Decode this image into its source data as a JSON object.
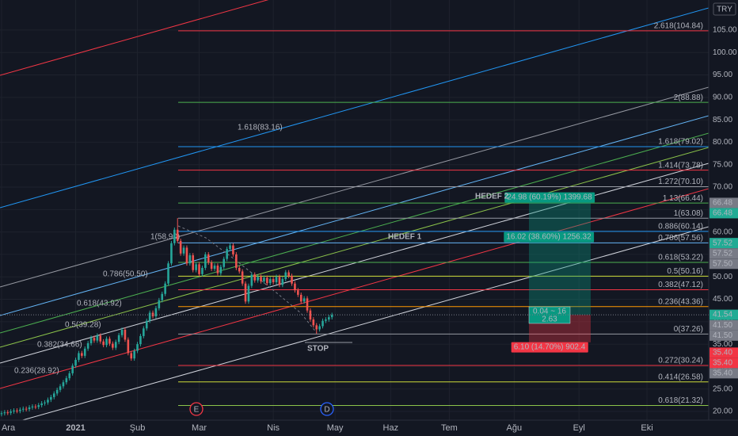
{
  "chart_data": {
    "type": "candlestick",
    "currency": "TRY",
    "xlim": [
      -0.5,
      229
    ],
    "xticks": [
      {
        "value": 0,
        "label": "Ara"
      },
      {
        "value": 24,
        "label": "2021"
      },
      {
        "value": 44,
        "label": "Şub"
      },
      {
        "value": 64,
        "label": "Mar"
      },
      {
        "value": 88,
        "label": "Nis"
      },
      {
        "value": 108,
        "label": "May"
      },
      {
        "value": 126,
        "label": "Haz"
      },
      {
        "value": 145,
        "label": "Tem"
      },
      {
        "value": 166,
        "label": "Ağu"
      },
      {
        "value": 187,
        "label": "Eyl"
      },
      {
        "value": 209,
        "label": "Eki"
      }
    ],
    "ylim": [
      18.06,
      111.7
    ],
    "yticks": [
      {
        "value": 20,
        "label": "20.00"
      },
      {
        "value": 25,
        "label": "25.00"
      },
      {
        "value": 30,
        "label": "30.00"
      },
      {
        "value": 35,
        "label": "35.00"
      },
      {
        "value": 40,
        "label": "40.00"
      },
      {
        "value": 45,
        "label": "45.00"
      },
      {
        "value": 50,
        "label": "50.00"
      },
      {
        "value": 55,
        "label": "55.00"
      },
      {
        "value": 60,
        "label": "60.00"
      },
      {
        "value": 65,
        "label": "65.00"
      },
      {
        "value": 70,
        "label": "70.00"
      },
      {
        "value": 75,
        "label": "75.00"
      },
      {
        "value": 80,
        "label": "80.00"
      },
      {
        "value": 85,
        "label": "85.00"
      },
      {
        "value": 90,
        "label": "90.00"
      },
      {
        "value": 95,
        "label": "95.00"
      },
      {
        "value": 100,
        "label": "100.00"
      },
      {
        "value": 105,
        "label": "105.00"
      }
    ],
    "grid": true,
    "up_color": "#26a69a",
    "down_color": "#ef5350",
    "open": [
      19.4,
      19.6,
      19.8,
      19.7,
      20.0,
      20.2,
      20.1,
      20.4,
      20.6,
      20.5,
      20.9,
      21.1,
      21.0,
      21.4,
      21.8,
      22.0,
      22.6,
      23.2,
      24.0,
      24.8,
      25.6,
      26.5,
      27.4,
      28.5,
      30.2,
      31.5,
      33.0,
      32.4,
      34.0,
      35.2,
      36.4,
      35.8,
      36.9,
      35.6,
      34.8,
      36.2,
      35.1,
      34.2,
      35.5,
      37.0,
      38.2,
      36.0,
      33.0,
      31.8,
      33.5,
      35.0,
      36.8,
      38.5,
      40.2,
      42.0,
      41.2,
      43.0,
      44.8,
      46.2,
      48.5,
      53.0,
      57.5,
      60.5,
      58.0,
      55.2,
      56.5,
      53.0,
      54.8,
      51.5,
      52.8,
      50.6,
      52.0,
      55.0,
      53.2,
      51.8,
      52.5,
      50.8,
      52.2,
      54.0,
      56.2,
      57.0,
      55.0,
      52.0,
      51.2,
      48.5,
      44.5,
      48.0,
      50.5,
      49.2,
      50.0,
      49.0,
      49.8,
      48.6,
      49.5,
      48.8,
      50.0,
      48.2,
      49.5,
      51.0,
      50.2,
      48.5,
      47.0,
      46.0,
      44.5,
      45.2,
      42.5,
      40.5,
      39.2,
      38.3,
      39.0,
      40.2,
      40.5,
      41.0
    ],
    "high": [
      20.1,
      20.3,
      20.3,
      20.5,
      20.7,
      20.7,
      20.9,
      21.1,
      21.1,
      21.4,
      21.6,
      21.6,
      21.9,
      22.3,
      22.5,
      23.1,
      23.7,
      24.5,
      25.3,
      26.1,
      27.0,
      27.9,
      29.0,
      30.7,
      32.0,
      33.5,
      33.5,
      34.5,
      35.7,
      36.9,
      36.9,
      37.4,
      37.4,
      36.1,
      36.7,
      36.7,
      35.6,
      36.0,
      37.5,
      38.7,
      38.7,
      36.5,
      33.5,
      34.0,
      35.5,
      37.3,
      39.0,
      40.7,
      42.5,
      42.5,
      43.5,
      45.3,
      46.7,
      49.0,
      53.5,
      58.0,
      61.0,
      63.1,
      58.5,
      57.0,
      57.0,
      55.3,
      55.3,
      53.3,
      53.3,
      52.5,
      55.5,
      55.5,
      53.7,
      53.0,
      53.0,
      52.7,
      54.5,
      56.7,
      57.5,
      57.5,
      55.5,
      52.5,
      51.7,
      49.0,
      48.5,
      51.0,
      51.0,
      50.5,
      50.5,
      50.3,
      50.3,
      50.0,
      50.0,
      50.5,
      50.5,
      50.0,
      51.5,
      51.5,
      50.7,
      49.0,
      47.5,
      46.5,
      45.7,
      45.7,
      43.0,
      41.0,
      39.7,
      39.5,
      40.7,
      41.0,
      41.5,
      42.0
    ],
    "low": [
      18.9,
      19.1,
      19.2,
      19.2,
      19.5,
      19.6,
      19.6,
      19.9,
      20.0,
      20.0,
      20.4,
      20.5,
      20.5,
      20.9,
      21.3,
      21.5,
      22.1,
      22.7,
      23.5,
      24.3,
      25.1,
      26.0,
      26.9,
      28.0,
      29.7,
      31.0,
      31.9,
      31.9,
      33.5,
      34.7,
      35.3,
      35.3,
      35.1,
      34.3,
      34.3,
      34.6,
      33.7,
      33.7,
      35.0,
      36.5,
      35.5,
      32.5,
      31.3,
      31.3,
      33.0,
      34.5,
      36.3,
      38.0,
      39.7,
      40.7,
      40.7,
      42.5,
      44.3,
      45.7,
      48.0,
      52.5,
      57.0,
      57.5,
      54.7,
      54.7,
      52.5,
      52.5,
      51.0,
      51.0,
      50.1,
      50.1,
      51.5,
      52.7,
      51.3,
      51.3,
      50.3,
      50.3,
      51.7,
      53.5,
      55.7,
      54.5,
      51.5,
      50.7,
      48.0,
      44.0,
      44.0,
      47.5,
      48.7,
      48.7,
      48.5,
      48.5,
      48.1,
      48.1,
      48.3,
      48.3,
      47.7,
      47.7,
      49.0,
      49.7,
      48.0,
      46.5,
      45.5,
      44.0,
      44.0,
      42.0,
      40.0,
      38.7,
      37.3,
      37.8,
      38.5,
      39.7,
      40.0,
      40.5
    ],
    "close": [
      19.6,
      19.8,
      19.7,
      20.0,
      20.2,
      20.1,
      20.4,
      20.6,
      20.5,
      20.9,
      21.1,
      21.0,
      21.4,
      21.8,
      22.0,
      22.6,
      23.2,
      24.0,
      24.8,
      25.6,
      26.5,
      27.4,
      28.5,
      30.2,
      31.5,
      33.0,
      32.4,
      34.0,
      35.2,
      36.4,
      35.8,
      36.9,
      35.6,
      34.8,
      36.2,
      35.1,
      34.2,
      35.5,
      37.0,
      38.2,
      36.0,
      33.0,
      31.8,
      33.5,
      35.0,
      36.8,
      38.5,
      40.2,
      42.0,
      41.2,
      43.0,
      44.8,
      46.2,
      48.5,
      53.0,
      57.5,
      60.5,
      58.0,
      55.2,
      56.5,
      53.0,
      54.8,
      51.5,
      52.8,
      50.6,
      52.0,
      55.0,
      53.2,
      51.8,
      52.5,
      50.8,
      52.2,
      54.0,
      56.2,
      57.0,
      55.0,
      52.0,
      51.2,
      48.5,
      44.5,
      48.0,
      50.5,
      49.2,
      50.0,
      49.0,
      49.8,
      48.6,
      49.5,
      48.8,
      50.0,
      48.2,
      49.5,
      51.0,
      50.2,
      48.5,
      47.0,
      46.0,
      44.5,
      45.2,
      42.5,
      40.5,
      39.2,
      38.3,
      39.0,
      40.2,
      40.5,
      41.0,
      41.54
    ],
    "fib_levels": [
      {
        "label": "2.618(104.84)",
        "value": 104.84,
        "color": "#f23645"
      },
      {
        "label": "2(88.88)",
        "value": 88.88,
        "color": "#4caf50"
      },
      {
        "label": "1.618(79.02)",
        "value": 79.02,
        "color": "#2196f3"
      },
      {
        "label": "1.414(73.78)",
        "value": 73.78,
        "color": "#f23645"
      },
      {
        "label": "1.272(70.10)",
        "value": 70.1,
        "color": "#9598a1"
      },
      {
        "label": "1.13(66.44)",
        "value": 66.44,
        "color": "#4caf50"
      },
      {
        "label": "1(63.08)",
        "value": 63.08,
        "color": "#9598a1"
      },
      {
        "label": "0.886(60.14)",
        "value": 60.14,
        "color": "#2196f3"
      },
      {
        "label": "0.786(57.56)",
        "value": 57.56,
        "color": "#64b5f6"
      },
      {
        "label": "0.618(53.22)",
        "value": 53.22,
        "color": "#4caf50"
      },
      {
        "label": "0.5(50.16)",
        "value": 50.16,
        "color": "#cddc39"
      },
      {
        "label": "0.382(47.12)",
        "value": 47.12,
        "color": "#f23645"
      },
      {
        "label": "0.236(43.36)",
        "value": 43.36,
        "color": "#ff9800"
      },
      {
        "label": "0(37.26)",
        "value": 37.26,
        "color": "#9598a1"
      },
      {
        "label": "0.272(30.24)",
        "value": 30.24,
        "color": "#f23645"
      },
      {
        "label": "0.414(26.58)",
        "value": 26.58,
        "color": "#cddc39"
      },
      {
        "label": "0.618(21.32)",
        "value": 21.32,
        "color": "#8bc34a"
      }
    ],
    "fib_channel": [
      {
        "label": "1.618(83.16)",
        "color": "#2196f3"
      },
      {
        "label": "1(58.90)",
        "color": "#9598a1"
      },
      {
        "label": "0.786(50.50)",
        "color": "#64b5f6"
      },
      {
        "label": "0.618(43.92)",
        "color": "#4caf50"
      },
      {
        "label": "0.5(39.28)",
        "color": "#8bc34a"
      },
      {
        "label": "0.382(34.66)",
        "color": "#d1d4dc"
      },
      {
        "label": "0.236(28.92)",
        "color": "#f23645"
      }
    ],
    "annotations": [
      {
        "text": "HEDEF 2"
      },
      {
        "text": "HEDEF 1"
      },
      {
        "text": "STOP"
      }
    ],
    "position": {
      "entry": 41.54,
      "target": 66.48,
      "stop": 35.4,
      "target_label": "24.98 (60.19%) 1399.68",
      "mid_label": "16.02 (38.60%) 1256.32",
      "ratio_top": "0.04 ~ 16",
      "ratio_bottom": "2.63",
      "stop_label": "6.10 (14.70%) 902.4"
    },
    "price_tags": [
      {
        "value": 66.48,
        "color": "#787b86"
      },
      {
        "value": 66.48,
        "color": "#22ab94"
      },
      {
        "value": 57.52,
        "color": "#22ab94"
      },
      {
        "value": 57.52,
        "color": "#787b86"
      },
      {
        "value": 57.5,
        "label": "57.50",
        "color": "#787b86"
      },
      {
        "value": 41.54,
        "color": "#22ab94"
      },
      {
        "value": 41.5,
        "label": "41.50",
        "color": "#787b86"
      },
      {
        "value": 41.5,
        "label": "41.50",
        "color": "#787b86"
      },
      {
        "value": 35.4,
        "label": "35.40",
        "color": "#f23645"
      },
      {
        "value": 35.4,
        "label": "35.40",
        "color": "#f23645"
      },
      {
        "value": 35.4,
        "label": "35.40",
        "color": "#787b86"
      }
    ],
    "markers": [
      {
        "text": "E",
        "color": "#f23645"
      },
      {
        "text": "D",
        "color": "#2962ff"
      }
    ]
  }
}
